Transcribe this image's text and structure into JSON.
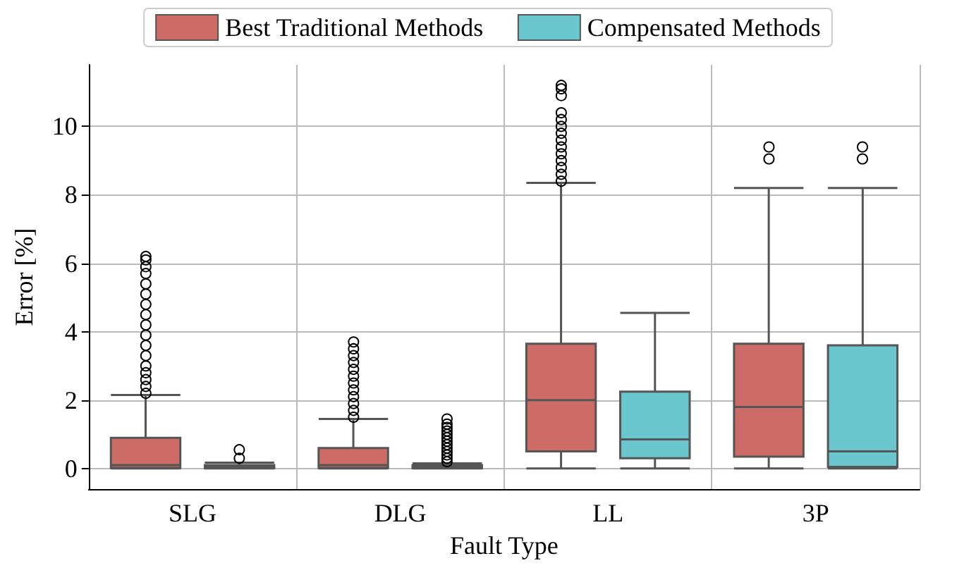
{
  "chart_data": {
    "type": "box",
    "xlabel": "Fault Type",
    "ylabel": "Error [%]",
    "categories": [
      "SLG",
      "DLG",
      "LL",
      "3P"
    ],
    "ylim": [
      -0.6,
      11.8
    ],
    "yticks": [
      0,
      2,
      4,
      6,
      8,
      10
    ],
    "grid": true,
    "legend": "top",
    "series": [
      {
        "name": "Best Traditional Methods",
        "color": "#cd6b66",
        "boxes": [
          {
            "low": 0,
            "q1": 0.02,
            "median": 0.1,
            "q3": 0.9,
            "high": 2.15,
            "outliers": [
              2.2,
              2.4,
              2.6,
              2.8,
              3.0,
              3.3,
              3.6,
              3.9,
              4.2,
              4.5,
              4.8,
              5.1,
              5.4,
              5.7,
              5.9,
              6.1,
              6.2
            ]
          },
          {
            "low": 0,
            "q1": 0.02,
            "median": 0.1,
            "q3": 0.6,
            "high": 1.45,
            "outliers": [
              1.5,
              1.7,
              1.9,
              2.1,
              2.3,
              2.5,
              2.7,
              2.9,
              3.1,
              3.3,
              3.5,
              3.7
            ]
          },
          {
            "low": 0,
            "q1": 0.5,
            "median": 2.0,
            "q3": 3.65,
            "high": 8.35,
            "outliers": [
              8.4,
              8.6,
              8.8,
              9.0,
              9.2,
              9.4,
              9.6,
              9.8,
              10.0,
              10.2,
              10.4,
              10.9,
              11.1,
              11.2
            ]
          },
          {
            "low": 0,
            "q1": 0.35,
            "median": 1.8,
            "q3": 3.65,
            "high": 8.2,
            "outliers": [
              9.05,
              9.4
            ]
          }
        ]
      },
      {
        "name": "Compensated Methods",
        "color": "#68c6cc",
        "boxes": [
          {
            "low": 0,
            "q1": 0.01,
            "median": 0.04,
            "q3": 0.1,
            "high": 0.17,
            "outliers": [
              0.3,
              0.55
            ]
          },
          {
            "low": 0,
            "q1": 0.01,
            "median": 0.04,
            "q3": 0.1,
            "high": 0.15,
            "outliers": [
              0.2,
              0.3,
              0.4,
              0.5,
              0.6,
              0.7,
              0.8,
              0.9,
              1.0,
              1.1,
              1.2,
              1.3,
              1.45
            ]
          },
          {
            "low": 0,
            "q1": 0.3,
            "median": 0.85,
            "q3": 2.25,
            "high": 4.55
          },
          {
            "low": 0,
            "q1": 0.05,
            "median": 0.5,
            "q3": 3.6,
            "high": 8.2,
            "outliers": [
              9.05,
              9.4
            ]
          }
        ]
      }
    ]
  }
}
